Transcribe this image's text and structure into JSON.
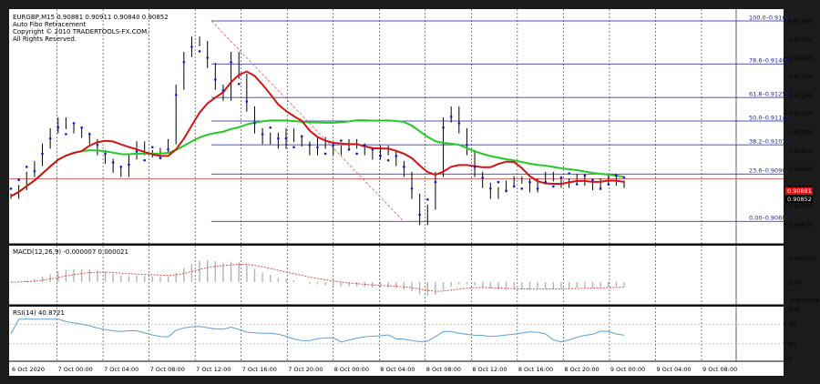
{
  "window_title": "EURGBP,M15",
  "indicator_title": "Auto Fibo Retracement",
  "copyright": "Copyright © 2010 TRADERTOOLS-FX.COM.",
  "rights": "All Rights Reserved.",
  "ohlc_header": "EURGBP,M15  0.90881 0.90911 0.90840 0.90852",
  "colors": {
    "frame": "#1b1b1b",
    "panel": "#ffffff",
    "grid": "#000000",
    "fibo": "#1a1aa8",
    "fibo_trend": "#e06060",
    "sar": "#1414e0",
    "ma_red": "#d21414",
    "ma_green": "#28c828",
    "price": "#000000",
    "macd_hist": "#b4b4b4",
    "macd_signal": "#e03c3c",
    "rsi": "#5aa0dc",
    "current_price_bg": "#000000",
    "bid_bg": "#d21414"
  },
  "chart_data": [
    {
      "type": "line",
      "name": "price",
      "ylim": [
        0.9059,
        0.9165
      ],
      "y_ticks": [
        "0.91605",
        "0.91520",
        "0.91435",
        "0.91350",
        "0.91265",
        "0.91180",
        "0.91095",
        "0.91010",
        "0.90925",
        "0.90840",
        "0.90755",
        "0.90670"
      ],
      "current_price_label": "0.90852",
      "bid_label": "0.90881",
      "fibo_levels": [
        {
          "label": "100.0–0.91604",
          "value": 0.91604
        },
        {
          "label": "78.6–0.91407",
          "value": 0.91407
        },
        {
          "label": "61.8–0.91253",
          "value": 0.91253
        },
        {
          "label": "50.0–0.91145",
          "value": 0.91145
        },
        {
          "label": "38.2–0.91036",
          "value": 0.91036
        },
        {
          "label": "23.6–0.90902",
          "value": 0.90902
        },
        {
          "label": "0.00–0.90685",
          "value": 0.90685
        }
      ],
      "x_labels": [
        "6 Oct 2020",
        "7 Oct 00:00",
        "7 Oct 04:00",
        "7 Oct 08:00",
        "7 Oct 12:00",
        "7 Oct 16:00",
        "7 Oct 20:00",
        "8 Oct 00:00",
        "8 Oct 04:00",
        "8 Oct 08:00",
        "8 Oct 12:00",
        "8 Oct 16:00",
        "8 Oct 20:00",
        "9 Oct 00:00",
        "9 Oct 04:00",
        "9 Oct 08:00"
      ],
      "close_series": [
        0.908,
        0.9084,
        0.909,
        0.9095,
        0.9103,
        0.911,
        0.9115,
        0.9112,
        0.911,
        0.9108,
        0.9105,
        0.91,
        0.9096,
        0.9092,
        0.909,
        0.9098,
        0.9104,
        0.91,
        0.9099,
        0.9101,
        0.9105,
        0.913,
        0.9145,
        0.9152,
        0.915,
        0.914,
        0.913,
        0.9125,
        0.9145,
        0.9135,
        0.912,
        0.911,
        0.9105,
        0.9108,
        0.9103,
        0.911,
        0.9106,
        0.9104,
        0.91,
        0.9106,
        0.9103,
        0.91,
        0.9102,
        0.9105,
        0.9103,
        0.91,
        0.9098,
        0.9102,
        0.91,
        0.9095,
        0.909,
        0.908,
        0.9068,
        0.9075,
        0.909,
        0.9115,
        0.912,
        0.911,
        0.91,
        0.909,
        0.9085,
        0.908,
        0.9083,
        0.9086,
        0.9088,
        0.9087,
        0.9083,
        0.9087,
        0.909,
        0.9088,
        0.9085,
        0.9087,
        0.9089,
        0.9086,
        0.9084,
        0.9087,
        0.9089,
        0.9086,
        0.9085
      ]
    },
    {
      "type": "bar",
      "name": "MACD(12,26,9)",
      "header": "MACD(12,26,9) -0.000007 0.000021",
      "y_ticks": [
        "0.001223",
        "0.00",
        "-0.000819"
      ]
    },
    {
      "type": "line",
      "name": "RSI(14)",
      "header": "RSI(14) 40.8721",
      "y_ticks": [
        "100",
        "70",
        "30",
        "0"
      ],
      "ylim": [
        0,
        100
      ]
    }
  ]
}
